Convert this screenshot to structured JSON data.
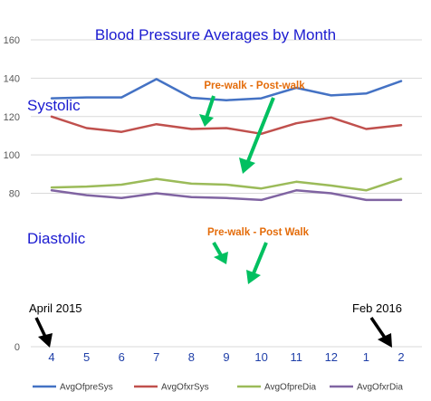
{
  "chart_data": {
    "type": "line",
    "title": "Blood Pressure Averages by Month",
    "xlabel": "",
    "ylabel": "",
    "ylim": [
      0,
      160
    ],
    "yticks": [
      0,
      80,
      100,
      120,
      140,
      160
    ],
    "categories": [
      "4",
      "5",
      "6",
      "7",
      "8",
      "9",
      "10",
      "11",
      "12",
      "1",
      "2"
    ],
    "series": [
      {
        "name": "AvgOfpreSys",
        "color": "#4472c4",
        "values": [
          129.5,
          130,
          130,
          139.5,
          129.8,
          128.5,
          129.5,
          135,
          131,
          132,
          138.5
        ]
      },
      {
        "name": "AvgOfxrSys",
        "color": "#c0504d",
        "values": [
          120,
          114,
          112,
          116,
          113.5,
          114,
          111,
          116.5,
          119.5,
          113.5,
          115.5
        ]
      },
      {
        "name": "AvgOfpreDia",
        "color": "#9bbb59",
        "values": [
          83,
          83.5,
          84.5,
          87.5,
          85,
          84.5,
          82.5,
          86,
          84,
          81.5,
          87.5
        ]
      },
      {
        "name": "AvgOfxrDia",
        "color": "#8064a2",
        "values": [
          81.5,
          79,
          77.5,
          80,
          78,
          77.5,
          76.5,
          81.5,
          80,
          76.5,
          76.5
        ]
      }
    ],
    "grid": true,
    "legend": "bottom",
    "group_labels": {
      "systolic": "Systolic",
      "diastolic": "Diastolic"
    },
    "annotations": {
      "systolic_note": "Pre-walk  -  Post-walk",
      "diastolic_note": "Pre-walk  -  Post Walk",
      "start_label": "April 2015",
      "end_label": "Feb 2016"
    }
  }
}
